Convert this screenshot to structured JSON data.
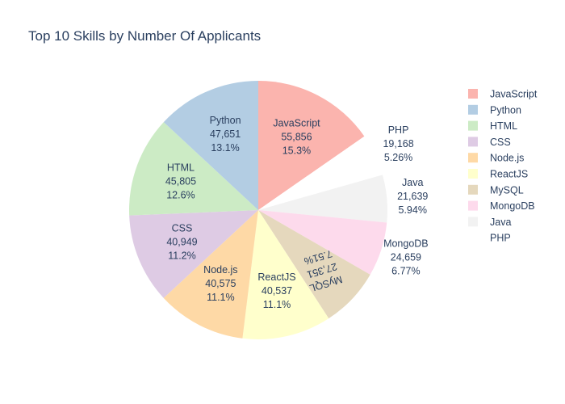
{
  "chart_data": {
    "type": "pie",
    "title": "Top 10 Skills by Number Of Applicants",
    "legend_position": "right",
    "slices": [
      {
        "label": "JavaScript",
        "value": 55856,
        "value_text": "55,856",
        "percent_text": "15.3%",
        "color": "#fbb4ae",
        "label_position": "inside"
      },
      {
        "label": "PHP",
        "value": 19168,
        "value_text": "19,168",
        "percent_text": "5.26%",
        "color": "#ffffff",
        "label_position": "outside"
      },
      {
        "label": "Java",
        "value": 21639,
        "value_text": "21,639",
        "percent_text": "5.94%",
        "color": "#f2f2f2",
        "label_position": "outside"
      },
      {
        "label": "MongoDB",
        "value": 24659,
        "value_text": "24,659",
        "percent_text": "6.77%",
        "color": "#fddaec",
        "label_position": "outside"
      },
      {
        "label": "MySQL",
        "value": 27351,
        "value_text": "27,351",
        "percent_text": "7.51%",
        "color": "#e5d8bd",
        "label_position": "inside-rotated"
      },
      {
        "label": "ReactJS",
        "value": 40537,
        "value_text": "40,537",
        "percent_text": "11.1%",
        "color": "#ffffcc",
        "label_position": "inside"
      },
      {
        "label": "Node.js",
        "value": 40575,
        "value_text": "40,575",
        "percent_text": "11.1%",
        "color": "#fed9a6",
        "label_position": "inside"
      },
      {
        "label": "CSS",
        "value": 40949,
        "value_text": "40,949",
        "percent_text": "11.2%",
        "color": "#decbe4",
        "label_position": "inside"
      },
      {
        "label": "HTML",
        "value": 45805,
        "value_text": "45,805",
        "percent_text": "12.6%",
        "color": "#ccebc5",
        "label_position": "inside"
      },
      {
        "label": "Python",
        "value": 47651,
        "value_text": "47,651",
        "percent_text": "13.1%",
        "color": "#b3cde3",
        "label_position": "inside"
      }
    ],
    "legend": [
      {
        "label": "JavaScript",
        "color": "#fbb4ae"
      },
      {
        "label": "Python",
        "color": "#b3cde3"
      },
      {
        "label": "HTML",
        "color": "#ccebc5"
      },
      {
        "label": "CSS",
        "color": "#decbe4"
      },
      {
        "label": "Node.js",
        "color": "#fed9a6"
      },
      {
        "label": "ReactJS",
        "color": "#ffffcc"
      },
      {
        "label": "MySQL",
        "color": "#e5d8bd"
      },
      {
        "label": "MongoDB",
        "color": "#fddaec"
      },
      {
        "label": "Java",
        "color": "#f2f2f2"
      },
      {
        "label": "PHP",
        "color": "#ffffff"
      }
    ]
  }
}
